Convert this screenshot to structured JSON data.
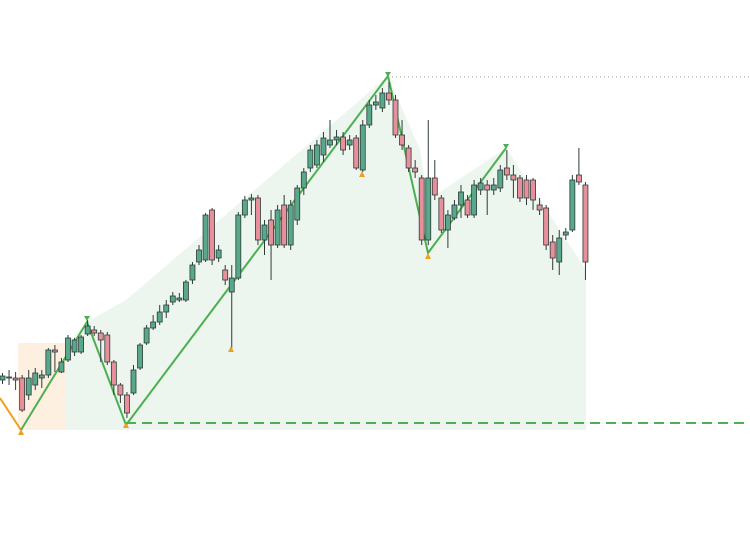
{
  "chart_data": {
    "type": "candlestick",
    "open": [
      120,
      122,
      122,
      122,
      105,
      115,
      122,
      125,
      150,
      128,
      140,
      148,
      148,
      166,
      170,
      167,
      165,
      138,
      115,
      105,
      107,
      132,
      157,
      172,
      178,
      188,
      198,
      200,
      200,
      220,
      238,
      240,
      290,
      242,
      230,
      208,
      222,
      285,
      300,
      302,
      260,
      280,
      255,
      295,
      255,
      280,
      312,
      332,
      335,
      345,
      355,
      360,
      363,
      355,
      362,
      330,
      375,
      395,
      392,
      407,
      400,
      365,
      352,
      332,
      322,
      260,
      322,
      302,
      270,
      282,
      295,
      300,
      285,
      310,
      315,
      310,
      312,
      332,
      325,
      322,
      320,
      320,
      295,
      292,
      258,
      238,
      265,
      270,
      325,
      315
    ],
    "high": [
      127,
      130,
      128,
      125,
      130,
      132,
      130,
      152,
      155,
      142,
      165,
      162,
      165,
      180,
      174,
      170,
      168,
      140,
      117,
      108,
      135,
      157,
      175,
      185,
      195,
      200,
      208,
      207,
      220,
      238,
      255,
      287,
      292,
      255,
      235,
      235,
      288,
      304,
      306,
      305,
      280,
      290,
      295,
      305,
      300,
      315,
      332,
      355,
      360,
      368,
      380,
      370,
      368,
      365,
      365,
      380,
      400,
      405,
      412,
      418,
      405,
      380,
      355,
      340,
      325,
      380,
      340,
      305,
      290,
      300,
      315,
      305,
      320,
      322,
      320,
      322,
      335,
      350,
      335,
      325,
      325,
      322,
      302,
      295,
      265,
      270,
      272,
      325,
      352,
      318
    ],
    "low": [
      116,
      115,
      110,
      88,
      100,
      110,
      112,
      122,
      128,
      127,
      138,
      144,
      146,
      164,
      164,
      138,
      135,
      105,
      97,
      82,
      105,
      130,
      155,
      170,
      175,
      182,
      195,
      198,
      198,
      216,
      235,
      238,
      235,
      238,
      215,
      152,
      220,
      282,
      285,
      255,
      245,
      220,
      252,
      252,
      250,
      275,
      305,
      328,
      332,
      338,
      352,
      355,
      345,
      350,
      330,
      328,
      372,
      390,
      388,
      395,
      362,
      350,
      328,
      322,
      255,
      255,
      300,
      267,
      252,
      280,
      282,
      282,
      282,
      305,
      285,
      305,
      308,
      320,
      302,
      298,
      295,
      290,
      285,
      250,
      230,
      225,
      260,
      268,
      315,
      220
    ],
    "close": [
      124,
      123,
      120,
      90,
      122,
      127,
      125,
      150,
      148,
      138,
      162,
      160,
      163,
      174,
      167,
      160,
      138,
      115,
      105,
      87,
      130,
      155,
      172,
      178,
      188,
      195,
      204,
      202,
      218,
      235,
      250,
      285,
      240,
      250,
      220,
      222,
      285,
      300,
      302,
      260,
      275,
      255,
      290,
      255,
      295,
      312,
      328,
      350,
      355,
      362,
      360,
      363,
      350,
      360,
      332,
      375,
      395,
      398,
      407,
      400,
      365,
      355,
      332,
      328,
      260,
      322,
      305,
      270,
      285,
      295,
      308,
      285,
      315,
      317,
      310,
      315,
      330,
      325,
      320,
      302,
      302,
      300,
      290,
      255,
      242,
      262,
      268,
      320,
      318,
      238
    ],
    "up_color": "#5aa88c",
    "down_color": "#e7909c",
    "outline_color": "#2f3b38",
    "ylim": [
      -38,
      500
    ],
    "hlines": [
      {
        "value": 77,
        "color": "#4caf50",
        "style": "dashed"
      },
      {
        "value": 423,
        "color": "#999999",
        "style": "dotted"
      }
    ]
  }
}
